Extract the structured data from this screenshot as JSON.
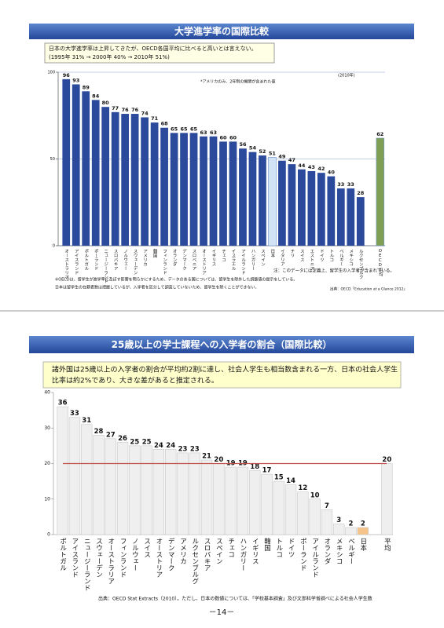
{
  "page_number": "－14－",
  "chart_data": [
    {
      "type": "bar",
      "title": "大学進学率の国際比較",
      "note": [
        "日本の大学進学率は上昇してきたが、OECD各国平均に比べると高いとは言えない。",
        "(1995年 31% → 2000年 40% → 2010年 51%)"
      ],
      "categories": [
        "オーストラリア",
        "アイスランド",
        "ポルトガル",
        "ポーランド",
        "ニュージーランド",
        "スロバキア",
        "ノルウェー",
        "スウェーデン",
        "アメリカ",
        "韓国",
        "フィンランド",
        "オランダ",
        "デンマーク",
        "スロベニア",
        "オーストリア",
        "イギリス",
        "チェコ",
        "イスラエル",
        "アイルランド",
        "ハンガリー",
        "スペイン",
        "日本",
        "イタリア",
        "チリ",
        "スイス",
        "エストニア",
        "ドイツ",
        "トルコ",
        "ベルギー",
        "メキシコ",
        "ルクセンブルク",
        "OECD平均"
      ],
      "values": [
        96,
        93,
        89,
        84,
        80,
        77,
        76,
        76,
        74,
        71,
        68,
        65,
        65,
        65,
        63,
        63,
        60,
        60,
        56,
        54,
        52,
        51,
        49,
        47,
        44,
        43,
        42,
        40,
        33,
        33,
        28,
        62
      ],
      "colors": [
        "#2b4a9c",
        "#2b4a9c",
        "#2b4a9c",
        "#2b4a9c",
        "#2b4a9c",
        "#2b4a9c",
        "#2b4a9c",
        "#2b4a9c",
        "#2b4a9c",
        "#2b4a9c",
        "#2b4a9c",
        "#2b4a9c",
        "#2b4a9c",
        "#2b4a9c",
        "#2b4a9c",
        "#2b4a9c",
        "#2b4a9c",
        "#2b4a9c",
        "#2b4a9c",
        "#2b4a9c",
        "#2b4a9c",
        "#d3e3f6",
        "#2b4a9c",
        "#2b4a9c",
        "#2b4a9c",
        "#2b4a9c",
        "#2b4a9c",
        "#2b4a9c",
        "#2b4a9c",
        "#2b4a9c",
        "#2b4a9c",
        "#7fa052"
      ],
      "ylim": [
        0,
        100
      ],
      "yticks": [
        0,
        50,
        100
      ],
      "grid": true,
      "annotations": [
        "*アメリカのみ、2年制の機関が含まれた値",
        "(2010年)",
        "注：このデータには定義上、留学生の入学者が含まれている。",
        "※OECDは、留学生が進学率に及ぼす影響を明らかにするため、データのある国については、留学生を除外した調整値の提示をしている。",
        "日本は留学生の在籍者数は把握しているが、入学者を区分して調査していないため、留学生を除くことができない。"
      ],
      "source": "出典：OECD「Education at a Glance 2012」"
    },
    {
      "type": "bar",
      "title": "25歳以上の学士課程への入学者の割合（国際比較）",
      "note": [
        "諸外国は25歳以上の入学者の割合が平均約2割に達し、社会人学生も相当数含まれる一方、日本の社会人学生",
        "比率は約2%であり、大きな差があると推定される。"
      ],
      "categories": [
        "ポルトガル",
        "アイスランド",
        "ニュージーランド",
        "スウェーデン",
        "オーストラリア",
        "フィンランド",
        "ノルウェー",
        "スイス",
        "オーストリア",
        "デンマーク",
        "アメリカ",
        "ルクセンブルグ",
        "スロバキア",
        "スペイン",
        "チェコ",
        "ハンガリー",
        "イギリス",
        "韓国",
        "トルコ",
        "ドイツ",
        "ポーランド",
        "アイルランド",
        "オランダ",
        "メキシコ",
        "ベルギー",
        "日本",
        "平均"
      ],
      "values": [
        36,
        33,
        31,
        28,
        27,
        26,
        25,
        25,
        24,
        24,
        23,
        23,
        21,
        20,
        19,
        19,
        18,
        17,
        15,
        14,
        12,
        10,
        7,
        3,
        2,
        2,
        20
      ],
      "colors": [
        "#efefef",
        "#efefef",
        "#efefef",
        "#efefef",
        "#efefef",
        "#efefef",
        "#efefef",
        "#efefef",
        "#efefef",
        "#efefef",
        "#efefef",
        "#efefef",
        "#efefef",
        "#efefef",
        "#efefef",
        "#efefef",
        "#efefef",
        "#efefef",
        "#efefef",
        "#efefef",
        "#efefef",
        "#efefef",
        "#efefef",
        "#efefef",
        "#efefef",
        "#f6c48a",
        "#efefef"
      ],
      "ylim": [
        0,
        40
      ],
      "yticks": [
        0,
        10,
        20,
        30,
        40
      ],
      "grid": false,
      "hline": 20,
      "hline_color": "#c0504d",
      "source": "出典：OECD Stat Extracts（2010）。ただし、日本の数値については、「学校基本調査」及び文部科学省調べによる社会人学生数"
    }
  ]
}
